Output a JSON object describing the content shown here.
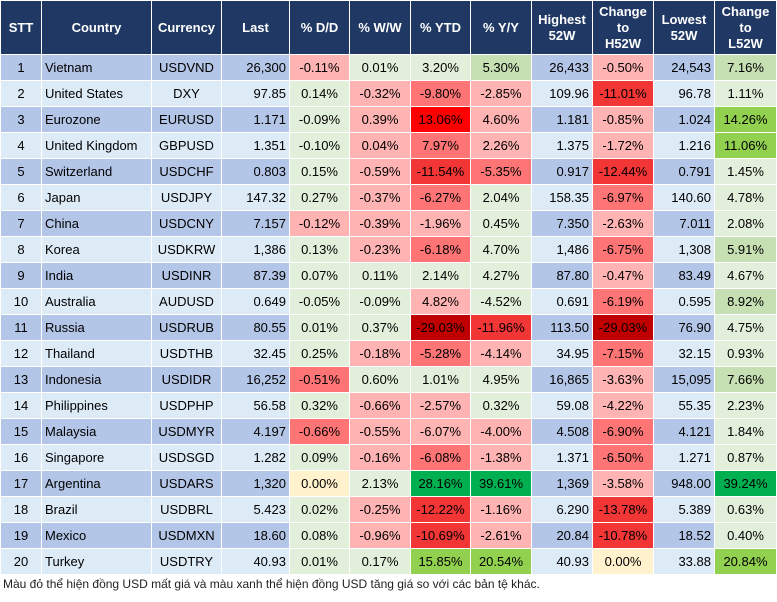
{
  "headers": [
    "STT",
    "Country",
    "Currency",
    "Last",
    "% D/D",
    "% W/W",
    "% YTD",
    "% Y/Y",
    "Highest\n52W",
    "Change\nto\nH52W",
    "Lowest\n52W",
    "Change\nto\nL52W"
  ],
  "colors": {
    "header": "#203864",
    "row_odd": "#B4C6E7",
    "row_even": "#DDEBF7",
    "g1": "#E2EFDA",
    "g2": "#C6E0B4",
    "g3": "#92D050",
    "g4": "#00B050",
    "r1": "#FFB3B3",
    "r2": "#FF7575",
    "r3": "#F23535",
    "r4": "#FF0000",
    "r5": "#C00000",
    "y": "#FFF2CC"
  },
  "rows": [
    {
      "stt": "1",
      "country": "Vietnam",
      "currency": "USDVND",
      "last": "26,300",
      "dd": "-0.11%",
      "ww": "0.01%",
      "ytd": "3.20%",
      "yy": "5.30%",
      "h52": "26,433",
      "ch": "-0.50%",
      "l52": "24,543",
      "cl": "7.16%",
      "heat": [
        "r1",
        "g1",
        "g1",
        "g2",
        "r1",
        "g2"
      ]
    },
    {
      "stt": "2",
      "country": "United States",
      "currency": "DXY",
      "last": "97.85",
      "dd": "0.14%",
      "ww": "-0.32%",
      "ytd": "-9.80%",
      "yy": "-2.85%",
      "h52": "109.96",
      "ch": "-11.01%",
      "l52": "96.78",
      "cl": "1.11%",
      "heat": [
        "g1",
        "r1",
        "r2",
        "r1",
        "r3",
        "g1"
      ]
    },
    {
      "stt": "3",
      "country": "Eurozone",
      "currency": "EURUSD",
      "last": "1.171",
      "dd": "-0.09%",
      "ww": "0.39%",
      "ytd": "13.06%",
      "yy": "4.60%",
      "h52": "1.181",
      "ch": "-0.85%",
      "l52": "1.024",
      "cl": "14.26%",
      "heat": [
        "g1",
        "r1",
        "r4",
        "r1",
        "r1",
        "g3"
      ]
    },
    {
      "stt": "4",
      "country": "United Kingdom",
      "currency": "GBPUSD",
      "last": "1.351",
      "dd": "-0.10%",
      "ww": "0.04%",
      "ytd": "7.97%",
      "yy": "2.26%",
      "h52": "1.375",
      "ch": "-1.72%",
      "l52": "1.216",
      "cl": "11.06%",
      "heat": [
        "g1",
        "r1",
        "r2",
        "r1",
        "r1",
        "g3"
      ]
    },
    {
      "stt": "5",
      "country": "Switzerland",
      "currency": "USDCHF",
      "last": "0.803",
      "dd": "0.15%",
      "ww": "-0.59%",
      "ytd": "-11.54%",
      "yy": "-5.35%",
      "h52": "0.917",
      "ch": "-12.44%",
      "l52": "0.791",
      "cl": "1.45%",
      "heat": [
        "g1",
        "r1",
        "r3",
        "r2",
        "r3",
        "g1"
      ]
    },
    {
      "stt": "6",
      "country": "Japan",
      "currency": "USDJPY",
      "last": "147.32",
      "dd": "0.27%",
      "ww": "-0.37%",
      "ytd": "-6.27%",
      "yy": "2.04%",
      "h52": "158.35",
      "ch": "-6.97%",
      "l52": "140.60",
      "cl": "4.78%",
      "heat": [
        "g1",
        "r1",
        "r2",
        "g1",
        "r2",
        "g1"
      ]
    },
    {
      "stt": "7",
      "country": "China",
      "currency": "USDCNY",
      "last": "7.157",
      "dd": "-0.12%",
      "ww": "-0.39%",
      "ytd": "-1.96%",
      "yy": "0.45%",
      "h52": "7.350",
      "ch": "-2.63%",
      "l52": "7.011",
      "cl": "2.08%",
      "heat": [
        "r1",
        "r1",
        "r1",
        "g1",
        "r1",
        "g1"
      ]
    },
    {
      "stt": "8",
      "country": "Korea",
      "currency": "USDKRW",
      "last": "1,386",
      "dd": "0.13%",
      "ww": "-0.23%",
      "ytd": "-6.18%",
      "yy": "4.70%",
      "h52": "1,486",
      "ch": "-6.75%",
      "l52": "1,308",
      "cl": "5.91%",
      "heat": [
        "g1",
        "r1",
        "r2",
        "g1",
        "r2",
        "g2"
      ]
    },
    {
      "stt": "9",
      "country": "India",
      "currency": "USDINR",
      "last": "87.39",
      "dd": "0.07%",
      "ww": "0.11%",
      "ytd": "2.14%",
      "yy": "4.27%",
      "h52": "87.80",
      "ch": "-0.47%",
      "l52": "83.49",
      "cl": "4.67%",
      "heat": [
        "g1",
        "g1",
        "g1",
        "g1",
        "r1",
        "g1"
      ]
    },
    {
      "stt": "10",
      "country": "Australia",
      "currency": "AUDUSD",
      "last": "0.649",
      "dd": "-0.05%",
      "ww": "-0.09%",
      "ytd": "4.82%",
      "yy": "-4.52%",
      "h52": "0.691",
      "ch": "-6.19%",
      "l52": "0.595",
      "cl": "8.92%",
      "heat": [
        "g1",
        "g1",
        "r1",
        "g1",
        "r2",
        "g2"
      ]
    },
    {
      "stt": "11",
      "country": "Russia",
      "currency": "USDRUB",
      "last": "80.55",
      "dd": "0.01%",
      "ww": "0.37%",
      "ytd": "-29.03%",
      "yy": "-11.96%",
      "h52": "113.50",
      "ch": "-29.03%",
      "l52": "76.90",
      "cl": "4.75%",
      "heat": [
        "g1",
        "g1",
        "r5",
        "r3",
        "r5",
        "g1"
      ]
    },
    {
      "stt": "12",
      "country": "Thailand",
      "currency": "USDTHB",
      "last": "32.45",
      "dd": "0.25%",
      "ww": "-0.18%",
      "ytd": "-5.28%",
      "yy": "-4.14%",
      "h52": "34.95",
      "ch": "-7.15%",
      "l52": "32.15",
      "cl": "0.93%",
      "heat": [
        "g1",
        "r1",
        "r2",
        "r1",
        "r2",
        "g1"
      ]
    },
    {
      "stt": "13",
      "country": "Indonesia",
      "currency": "USDIDR",
      "last": "16,252",
      "dd": "-0.51%",
      "ww": "0.60%",
      "ytd": "1.01%",
      "yy": "4.95%",
      "h52": "16,865",
      "ch": "-3.63%",
      "l52": "15,095",
      "cl": "7.66%",
      "heat": [
        "r2",
        "g1",
        "g1",
        "g1",
        "r1",
        "g2"
      ]
    },
    {
      "stt": "14",
      "country": "Philippines",
      "currency": "USDPHP",
      "last": "56.58",
      "dd": "0.32%",
      "ww": "-0.66%",
      "ytd": "-2.57%",
      "yy": "0.32%",
      "h52": "59.08",
      "ch": "-4.22%",
      "l52": "55.35",
      "cl": "2.23%",
      "heat": [
        "g1",
        "r1",
        "r1",
        "g1",
        "r1",
        "g1"
      ]
    },
    {
      "stt": "15",
      "country": "Malaysia",
      "currency": "USDMYR",
      "last": "4.197",
      "dd": "-0.66%",
      "ww": "-0.55%",
      "ytd": "-6.07%",
      "yy": "-4.00%",
      "h52": "4.508",
      "ch": "-6.90%",
      "l52": "4.121",
      "cl": "1.84%",
      "heat": [
        "r2",
        "r1",
        "r1",
        "r1",
        "r2",
        "g1"
      ]
    },
    {
      "stt": "16",
      "country": "Singapore",
      "currency": "USDSGD",
      "last": "1.282",
      "dd": "0.09%",
      "ww": "-0.16%",
      "ytd": "-6.08%",
      "yy": "-1.38%",
      "h52": "1.371",
      "ch": "-6.50%",
      "l52": "1.271",
      "cl": "0.87%",
      "heat": [
        "g1",
        "r1",
        "r2",
        "r1",
        "r2",
        "g1"
      ]
    },
    {
      "stt": "17",
      "country": "Argentina",
      "currency": "USDARS",
      "last": "1,320",
      "dd": "0.00%",
      "ww": "2.13%",
      "ytd": "28.16%",
      "yy": "39.61%",
      "h52": "1,369",
      "ch": "-3.58%",
      "l52": "948.00",
      "cl": "39.24%",
      "heat": [
        "y",
        "g1",
        "g4",
        "g4",
        "r1",
        "g4"
      ]
    },
    {
      "stt": "18",
      "country": "Brazil",
      "currency": "USDBRL",
      "last": "5.423",
      "dd": "0.02%",
      "ww": "-0.25%",
      "ytd": "-12.22%",
      "yy": "-1.16%",
      "h52": "6.290",
      "ch": "-13.78%",
      "l52": "5.389",
      "cl": "0.63%",
      "heat": [
        "g1",
        "r1",
        "r3",
        "r1",
        "r3",
        "g1"
      ]
    },
    {
      "stt": "19",
      "country": "Mexico",
      "currency": "USDMXN",
      "last": "18.60",
      "dd": "0.08%",
      "ww": "-0.96%",
      "ytd": "-10.69%",
      "yy": "-2.61%",
      "h52": "20.84",
      "ch": "-10.78%",
      "l52": "18.52",
      "cl": "0.40%",
      "heat": [
        "g1",
        "r1",
        "r3",
        "r1",
        "r3",
        "g1"
      ]
    },
    {
      "stt": "20",
      "country": "Turkey",
      "currency": "USDTRY",
      "last": "40.93",
      "dd": "0.01%",
      "ww": "0.17%",
      "ytd": "15.85%",
      "yy": "20.54%",
      "h52": "40.93",
      "ch": "0.00%",
      "l52": "33.88",
      "cl": "20.84%",
      "heat": [
        "g1",
        "g1",
        "g3",
        "g3",
        "y",
        "g3"
      ]
    }
  ],
  "footnote": "Màu đỏ thể hiện đồng USD mất giá và màu xanh thể hiện đồng USD tăng giá so với các bản tệ khác."
}
